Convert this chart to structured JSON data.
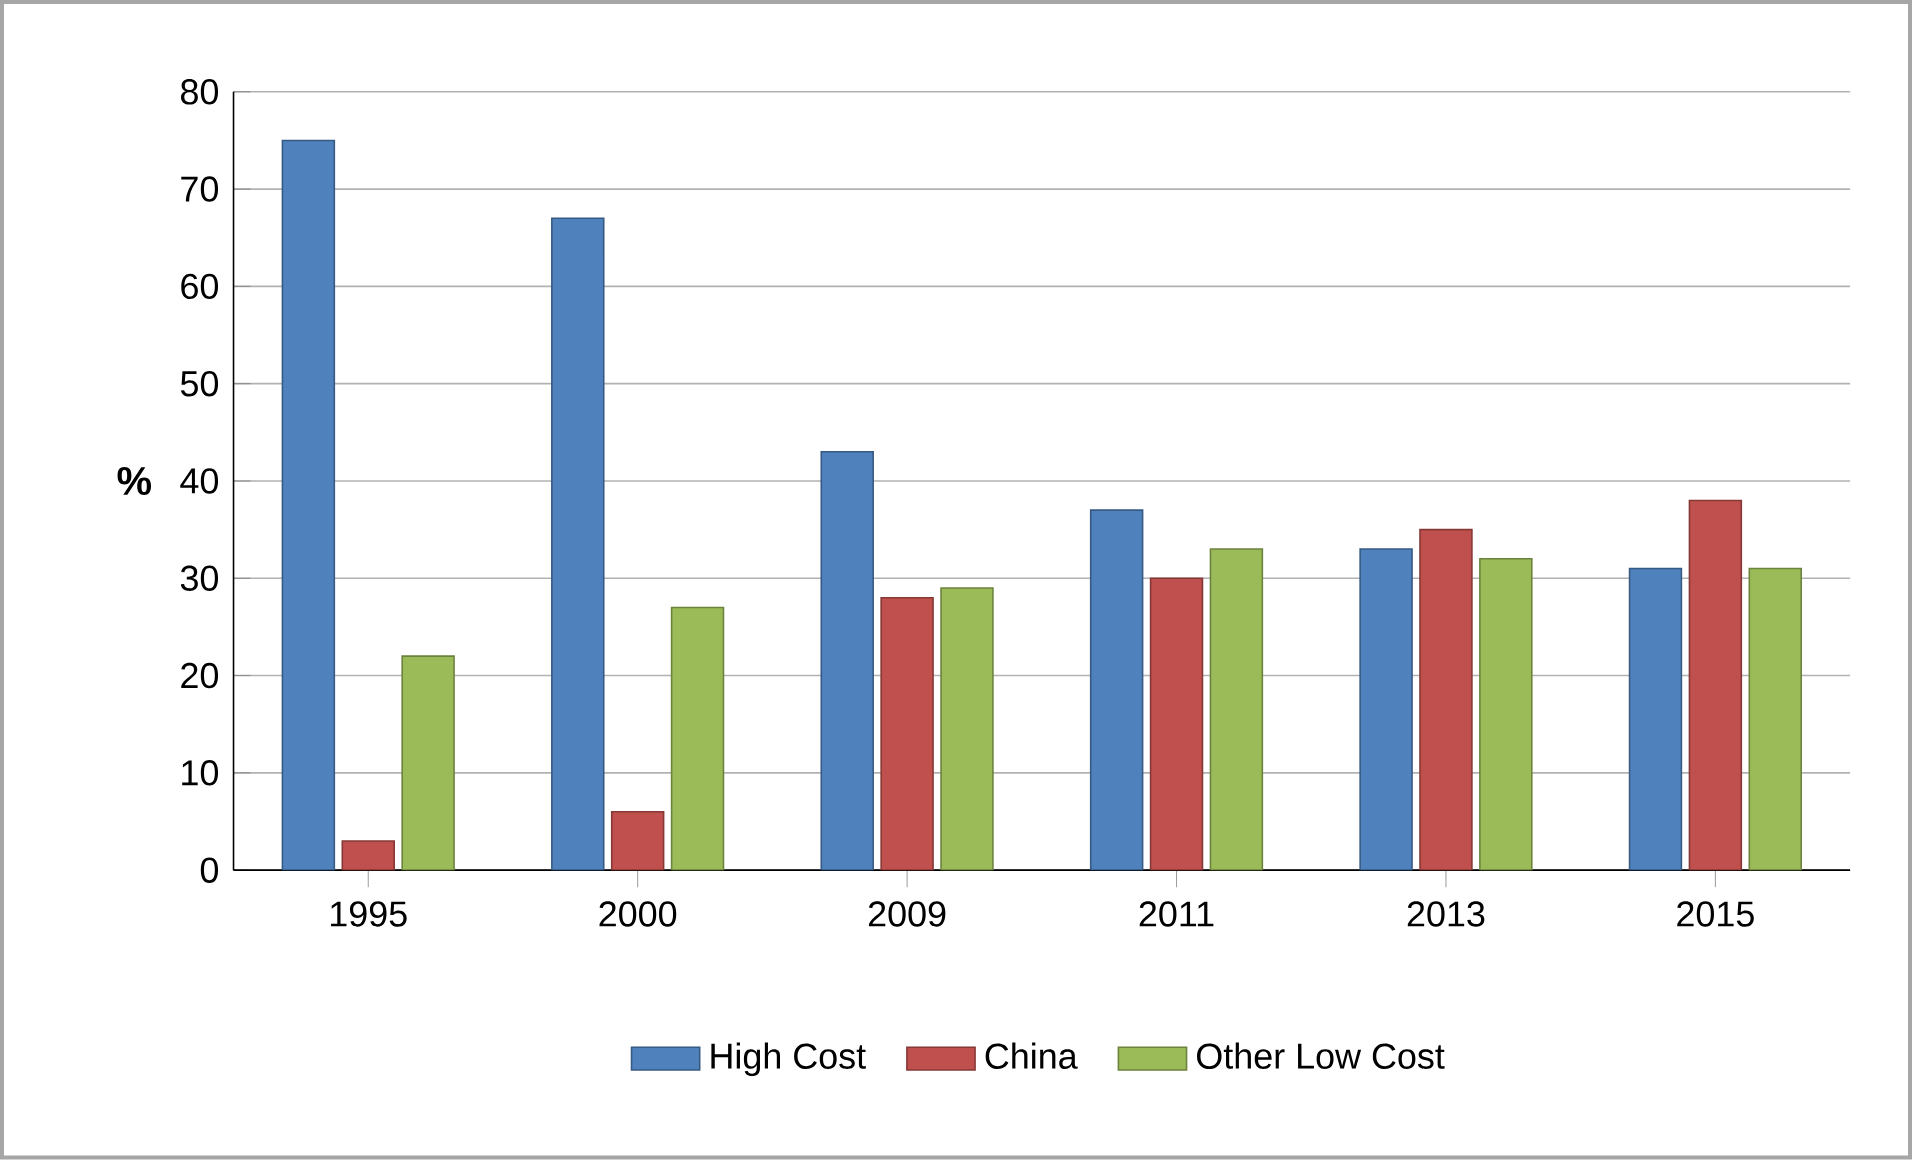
{
  "chart_data": {
    "type": "bar",
    "ylabel": "%",
    "categories": [
      "1995",
      "2000",
      "2009",
      "2011",
      "2013",
      "2015"
    ],
    "series": [
      {
        "name": "High Cost",
        "color": "#4f81bd",
        "values": [
          75,
          67,
          43,
          37,
          33,
          31
        ]
      },
      {
        "name": "China",
        "color": "#c0504d",
        "values": [
          3,
          6,
          28,
          30,
          35,
          38
        ]
      },
      {
        "name": "Other Low Cost",
        "color": "#9bbb59",
        "values": [
          22,
          27,
          29,
          33,
          32,
          31
        ]
      }
    ],
    "ylim": [
      0,
      80
    ],
    "yticks": [
      0,
      10,
      20,
      30,
      40,
      50,
      60,
      70,
      80
    ],
    "grid": "y",
    "legend": "bottom"
  }
}
